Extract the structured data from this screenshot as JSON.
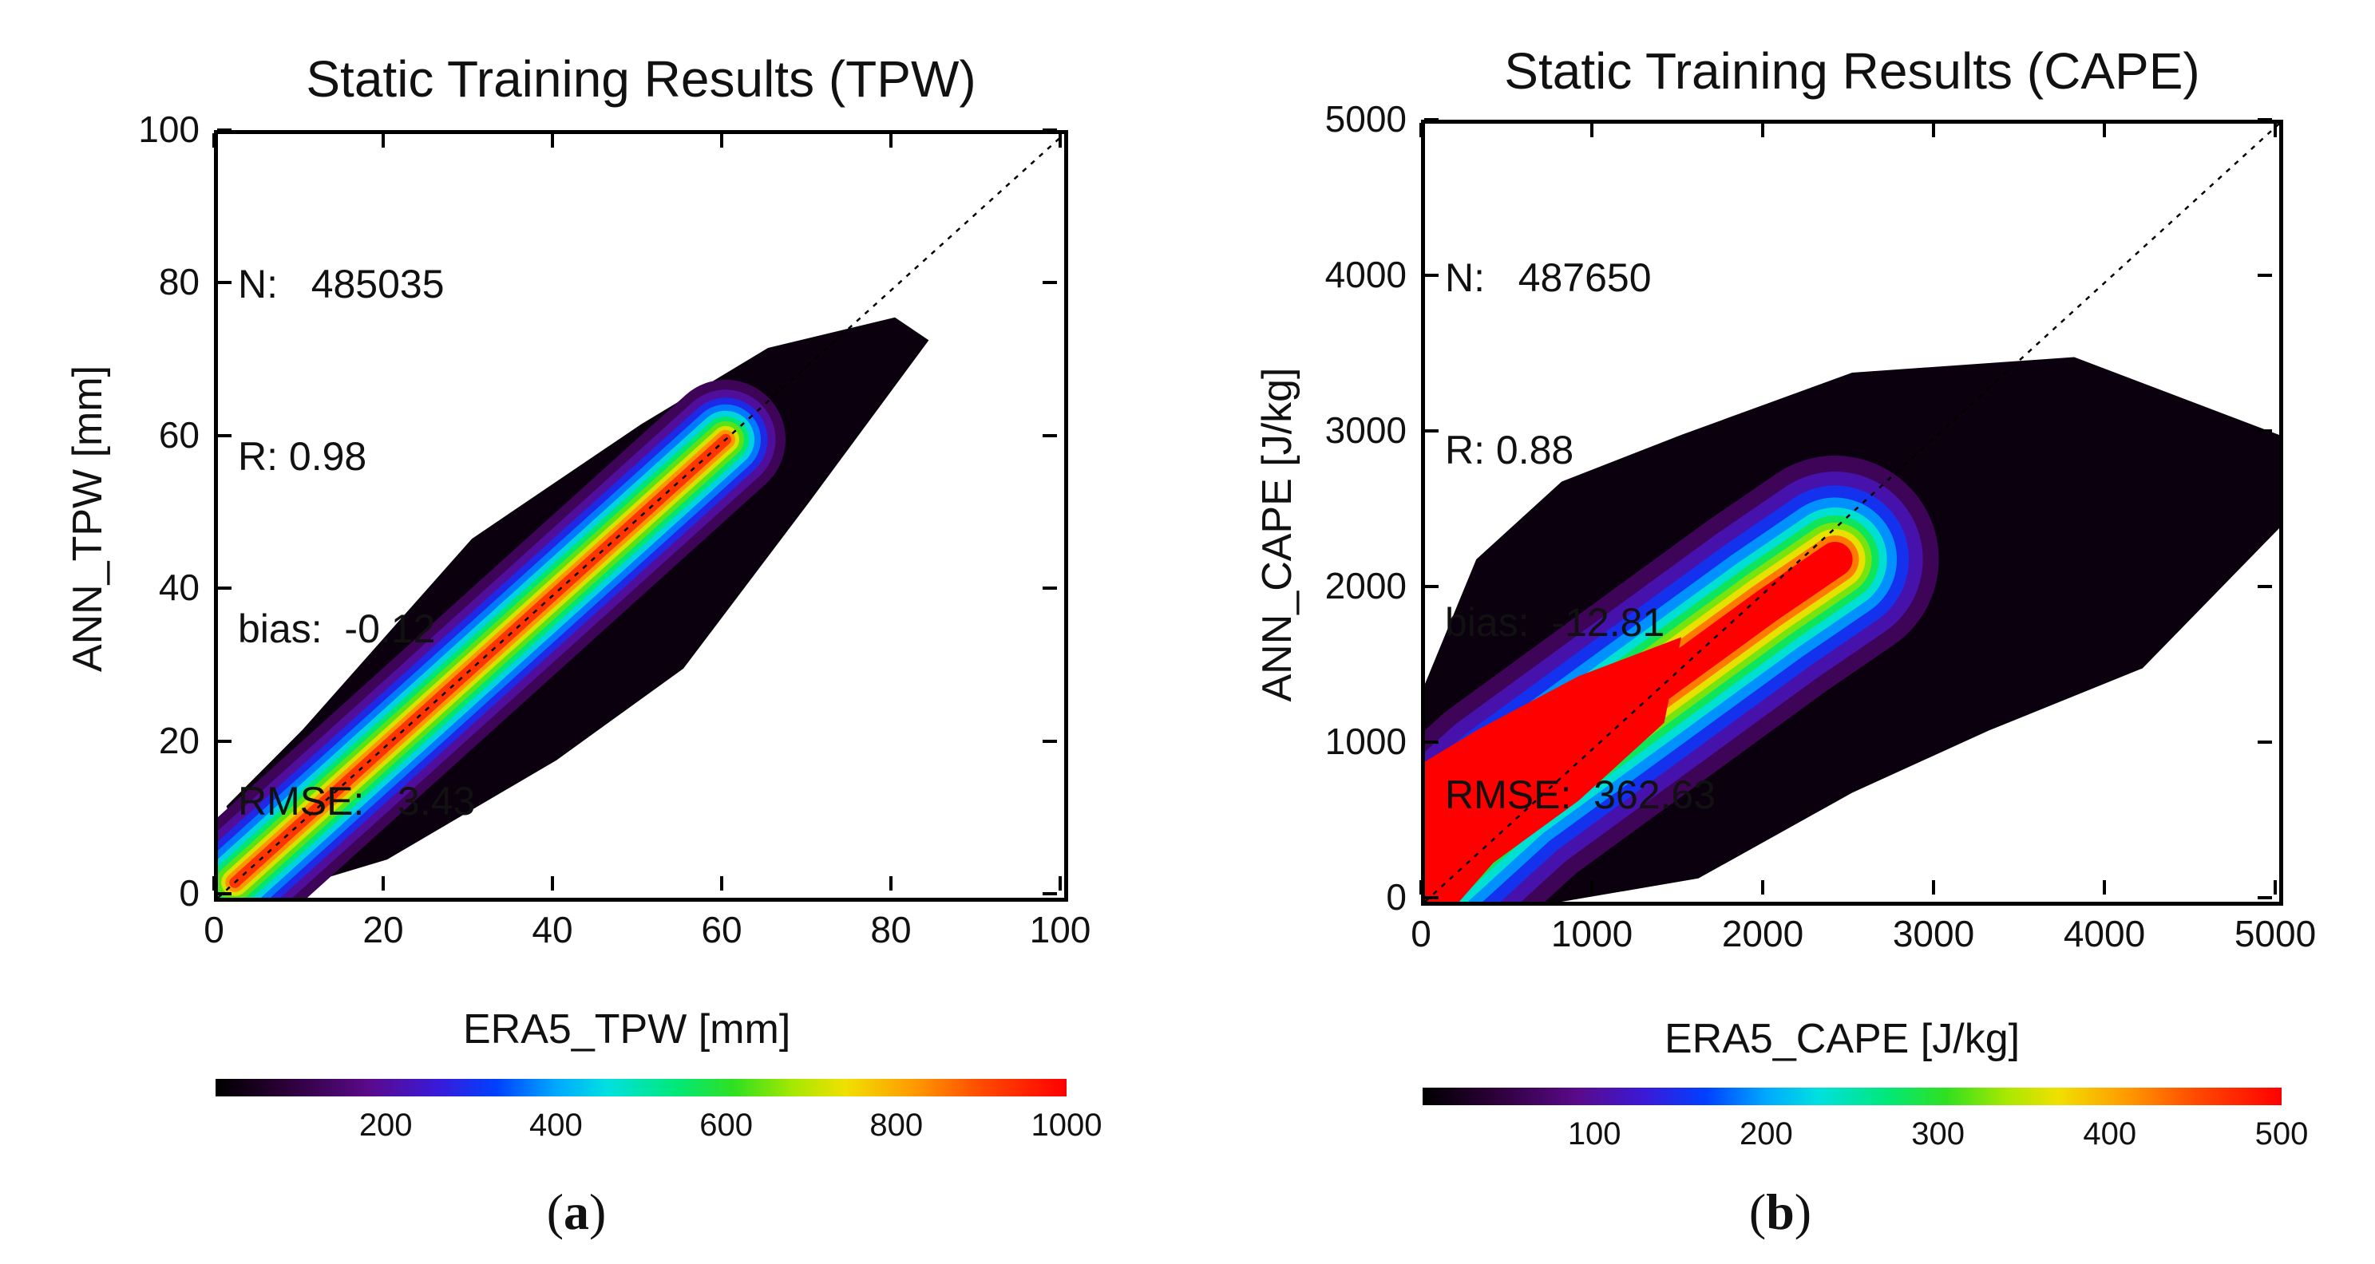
{
  "chart_data": [
    {
      "type": "heatmap",
      "panel_label": "a",
      "title": "Static Training Results (TPW)",
      "xlabel": "ERA5_TPW [mm]",
      "ylabel": "ANN_TPW [mm]",
      "xlim": [
        0,
        100
      ],
      "ylim": [
        0,
        100
      ],
      "xticks": [
        "0",
        "20",
        "40",
        "60",
        "80",
        "100"
      ],
      "yticks": [
        "0",
        "20",
        "40",
        "60",
        "80",
        "100"
      ],
      "stats": [
        {
          "label": "N:",
          "value": "485035"
        },
        {
          "label": "R:",
          "value": "0.98"
        },
        {
          "label": "bias:",
          "value": "-0.12"
        },
        {
          "label": "RMSE:",
          "value": "3.43"
        }
      ],
      "one_to_one_line": true,
      "colorbar": {
        "range": [
          0,
          1000
        ],
        "ticks": [
          "200",
          "400",
          "600",
          "800",
          "1000"
        ]
      },
      "density_ridge": [
        [
          2,
          2
        ],
        [
          10,
          10
        ],
        [
          20,
          20
        ],
        [
          30,
          30
        ],
        [
          40,
          40
        ],
        [
          50,
          50
        ],
        [
          60,
          60
        ]
      ],
      "scatter_extent": [
        [
          1,
          12
        ],
        [
          10,
          22
        ],
        [
          30,
          47
        ],
        [
          50,
          62
        ],
        [
          65,
          72
        ],
        [
          80,
          76
        ],
        [
          84,
          73
        ],
        [
          70,
          52
        ],
        [
          55,
          30
        ],
        [
          40,
          18
        ],
        [
          20,
          5
        ],
        [
          5,
          0
        ]
      ]
    },
    {
      "type": "heatmap",
      "panel_label": "b",
      "title": "Static Training Results (CAPE)",
      "xlabel": "ERA5_CAPE [J/kg]",
      "ylabel": "ANN_CAPE [J/kg]",
      "xlim": [
        0,
        5000
      ],
      "ylim": [
        0,
        5000
      ],
      "xticks": [
        "0",
        "1000",
        "2000",
        "3000",
        "4000",
        "5000"
      ],
      "yticks": [
        "0",
        "1000",
        "2000",
        "3000",
        "4000",
        "5000"
      ],
      "stats": [
        {
          "label": "N:",
          "value": "487650"
        },
        {
          "label": "R:",
          "value": "0.88"
        },
        {
          "label": "bias:",
          "value": "-12.81"
        },
        {
          "label": "RMSE:",
          "value": "362.63"
        }
      ],
      "one_to_one_line": true,
      "colorbar": {
        "range": [
          0,
          500
        ],
        "ticks": [
          "100",
          "200",
          "300",
          "400",
          "500"
        ]
      },
      "density_ridge": [
        [
          0,
          200
        ],
        [
          500,
          700
        ],
        [
          1000,
          1100
        ],
        [
          1500,
          1500
        ],
        [
          2000,
          1900
        ],
        [
          2400,
          2200
        ]
      ],
      "scatter_extent": [
        [
          0,
          1400
        ],
        [
          300,
          2200
        ],
        [
          800,
          2700
        ],
        [
          1500,
          3000
        ],
        [
          2500,
          3400
        ],
        [
          3800,
          3500
        ],
        [
          5000,
          3000
        ],
        [
          5000,
          2400
        ],
        [
          4200,
          1500
        ],
        [
          3300,
          1100
        ],
        [
          2500,
          700
        ],
        [
          1600,
          150
        ],
        [
          800,
          0
        ],
        [
          0,
          0
        ]
      ]
    }
  ]
}
